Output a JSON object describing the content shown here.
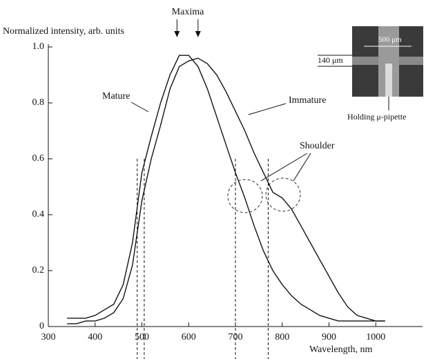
{
  "chart_data": {
    "type": "line",
    "y_label": "Normalized intensity, arb. units",
    "x_label": "Wavelength, nm",
    "annotations": {
      "maxima": "Maxima",
      "shoulder": "Shoulder"
    },
    "inset": {
      "width_label": "500 μm",
      "height_label": "140 μm",
      "pipette_label": "Holding μ-pipette"
    },
    "maxima_x": [
      575,
      620
    ],
    "reference_lines": [
      490,
      505,
      700,
      770
    ],
    "x": [
      340,
      360,
      380,
      400,
      420,
      440,
      460,
      480,
      500,
      520,
      540,
      560,
      580,
      600,
      620,
      640,
      660,
      680,
      700,
      720,
      740,
      760,
      780,
      800,
      820,
      840,
      860,
      880,
      900,
      920,
      940,
      960,
      980,
      1000,
      1020
    ],
    "series": [
      {
        "name": "Mature",
        "color": "#111111",
        "values": [
          0.03,
          0.03,
          0.03,
          0.04,
          0.06,
          0.08,
          0.15,
          0.3,
          0.55,
          0.68,
          0.8,
          0.9,
          0.97,
          0.97,
          0.93,
          0.85,
          0.75,
          0.65,
          0.55,
          0.46,
          0.36,
          0.27,
          0.2,
          0.15,
          0.11,
          0.08,
          0.06,
          0.04,
          0.03,
          0.02,
          0.02,
          0.02,
          0.02,
          0.02,
          0.02
        ]
      },
      {
        "name": "Immature",
        "color": "#111111",
        "values": [
          0.01,
          0.01,
          0.02,
          0.02,
          0.03,
          0.05,
          0.1,
          0.22,
          0.45,
          0.6,
          0.72,
          0.85,
          0.93,
          0.95,
          0.96,
          0.94,
          0.9,
          0.84,
          0.77,
          0.7,
          0.62,
          0.55,
          0.48,
          0.46,
          0.42,
          0.36,
          0.3,
          0.24,
          0.18,
          0.12,
          0.07,
          0.04,
          0.03,
          0.02,
          0.02
        ]
      }
    ],
    "xlim": [
      300,
      1100
    ],
    "ylim": [
      0,
      1
    ],
    "xticks": [
      300,
      400,
      500,
      600,
      700,
      800,
      900,
      1000
    ],
    "yticks": [
      0,
      0.2,
      0.4,
      0.6,
      0.8,
      {
        "value": 1,
        "label": "1.0"
      }
    ]
  }
}
